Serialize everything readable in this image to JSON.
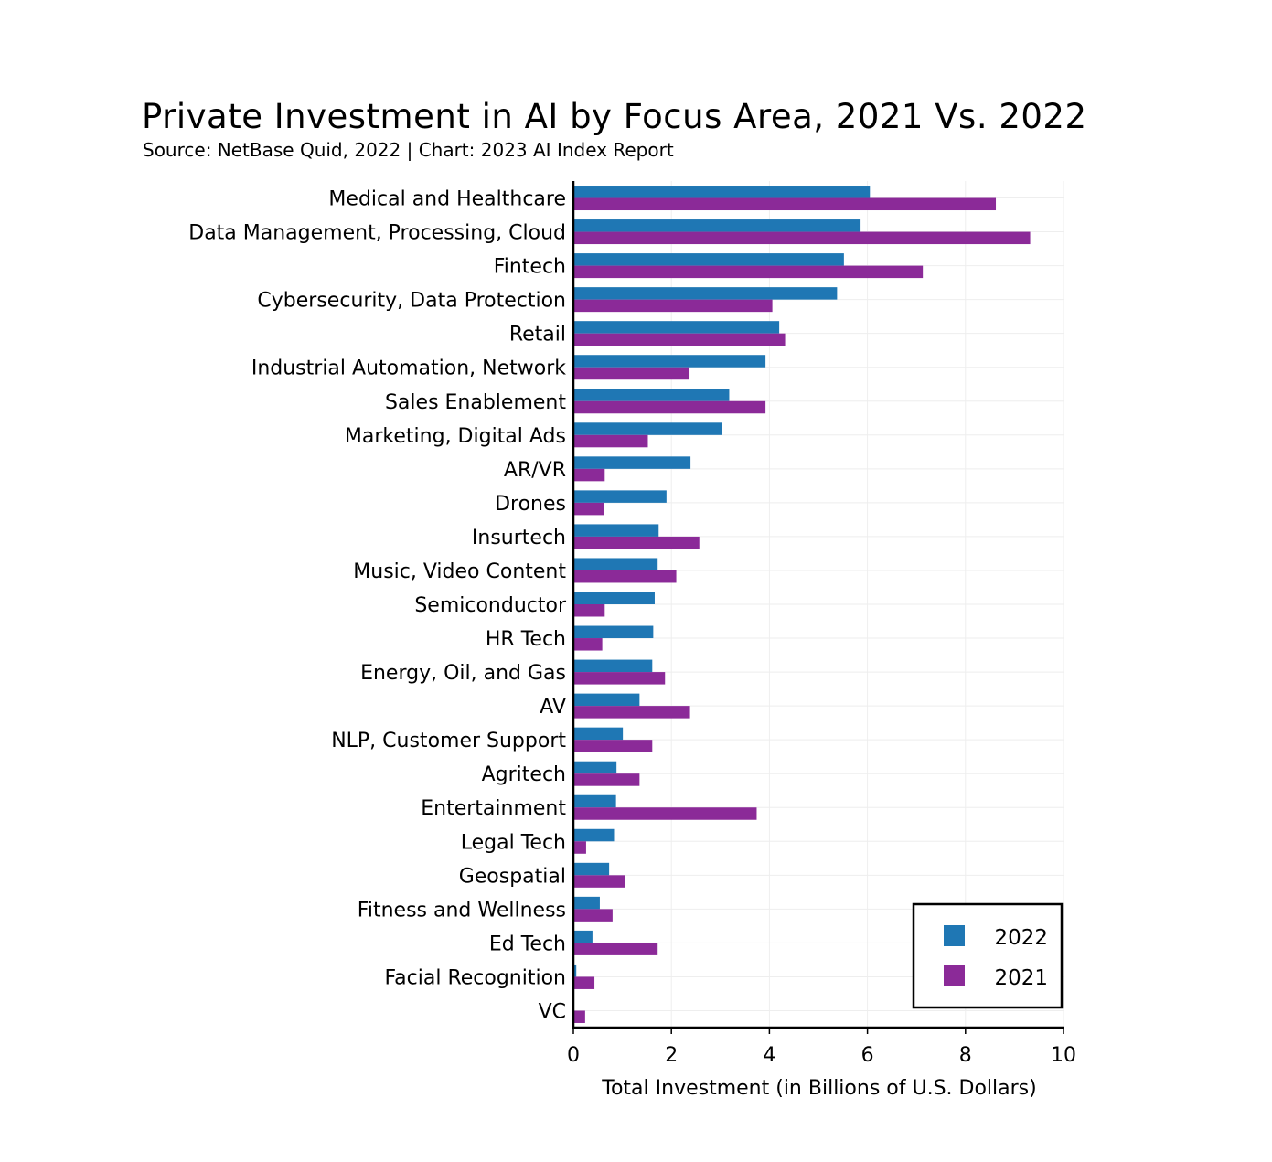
{
  "chart_data": {
    "type": "bar",
    "orientation": "horizontal",
    "title": "Private Investment in AI by Focus Area, 2021 Vs. 2022",
    "subtitle": "Source: NetBase Quid, 2022 | Chart: 2023 AI Index Report",
    "xlabel": "Total Investment (in Billions of U.S. Dollars)",
    "ylabel": "",
    "xlim": [
      0,
      10
    ],
    "xticks": [
      0,
      2,
      4,
      6,
      8,
      10
    ],
    "grid": true,
    "legend_position": "bottom-right",
    "categories": [
      "Medical and Healthcare",
      "Data Management, Processing, Cloud",
      "Fintech",
      "Cybersecurity, Data Protection",
      "Retail",
      "Industrial Automation, Network",
      "Sales Enablement",
      "Marketing, Digital Ads",
      "AR/VR",
      "Drones",
      "Insurtech",
      "Music, Video Content",
      "Semiconductor",
      "HR Tech",
      "Energy, Oil, and Gas",
      "AV",
      "NLP, Customer Support",
      "Agritech",
      "Entertainment",
      "Legal Tech",
      "Geospatial",
      "Fitness and Wellness",
      "Ed Tech",
      "Facial Recognition",
      "VC"
    ],
    "series": [
      {
        "name": "2022",
        "color": "#1f77b4",
        "values": [
          6.05,
          5.86,
          5.52,
          5.38,
          4.2,
          3.92,
          3.18,
          3.04,
          2.39,
          1.9,
          1.74,
          1.72,
          1.66,
          1.63,
          1.61,
          1.35,
          1.01,
          0.88,
          0.87,
          0.83,
          0.73,
          0.54,
          0.39,
          0.06,
          0.0
        ]
      },
      {
        "name": "2021",
        "color": "#8b2a98",
        "values": [
          8.62,
          9.32,
          7.13,
          4.06,
          4.32,
          2.37,
          3.92,
          1.52,
          0.64,
          0.62,
          2.57,
          2.1,
          0.64,
          0.59,
          1.87,
          2.38,
          1.61,
          1.35,
          3.74,
          0.26,
          1.05,
          0.8,
          1.72,
          0.43,
          0.24
        ]
      }
    ]
  }
}
